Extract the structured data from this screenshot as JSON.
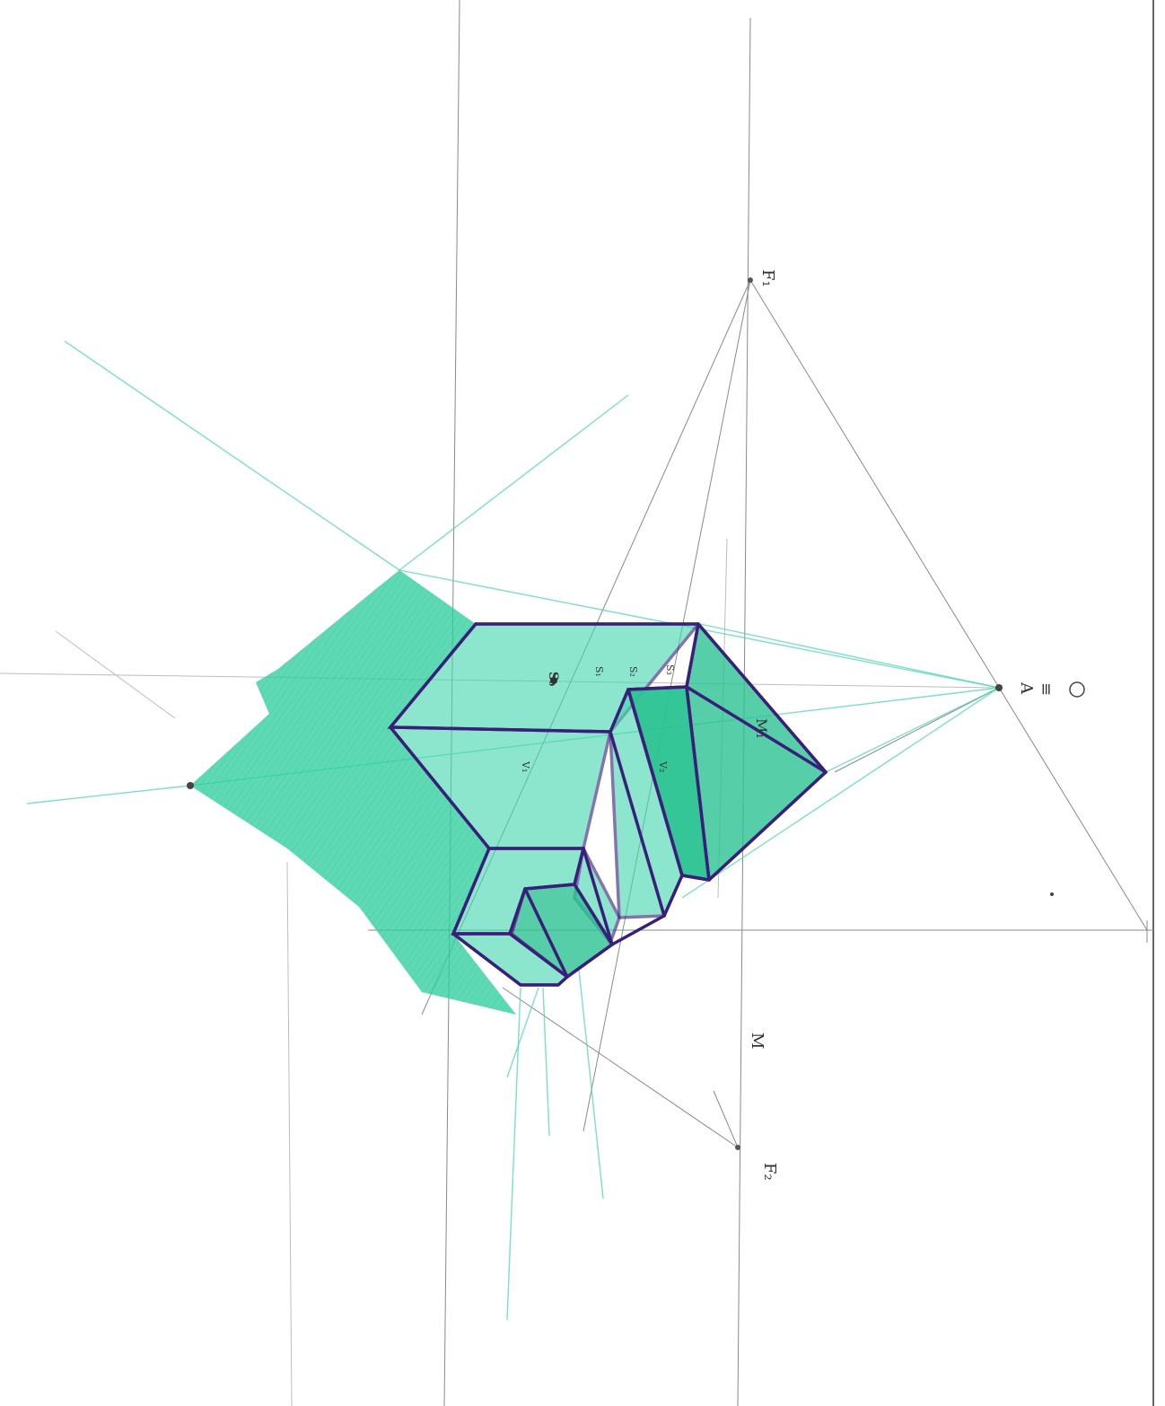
{
  "drawing": {
    "labels": {
      "f1": "F₁",
      "f2": "F₂",
      "a": "A",
      "equiv": "≡",
      "light_symbol": "💡",
      "m": "M",
      "s0": "S₀",
      "s1": "S₁",
      "s2": "S₂",
      "s3": "S₃",
      "v1": "V₁",
      "v2": "V₂",
      "m2": "M₁"
    },
    "colors": {
      "shadow": "#2fcf9f",
      "solid_edge": "#3a1f7a",
      "construction": "#8a8a8a"
    }
  }
}
